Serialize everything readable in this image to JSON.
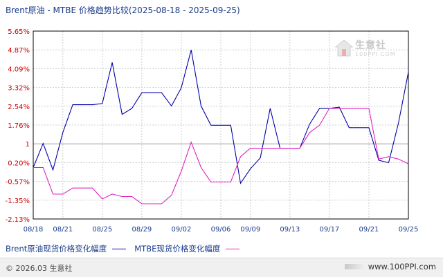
{
  "chart_data": {
    "type": "line",
    "title": "Brent原油 - MTBE 价格趋势比较(2025-08-18 - 2025-09-25)",
    "xlabel": "",
    "ylabel": "",
    "x_tick_labels": [
      "08/18",
      "08/21",
      "08/25",
      "08/29",
      "09/02",
      "09/06",
      "09/09",
      "09/13",
      "09/17",
      "09/21",
      "09/25"
    ],
    "y_tick_labels": [
      "5.65%",
      "4.87%",
      "4.09%",
      "3.32%",
      "2.54%",
      "1.76%",
      "1",
      "0.20%",
      "-0.57%",
      "-1.35%",
      "-2.13%"
    ],
    "ylim": [
      -2.13,
      5.65
    ],
    "grid": true,
    "legend_position": "bottom-left",
    "series": [
      {
        "name": "Brent原油现货价格变化幅度",
        "color": "#0000aa",
        "x": [
          "08/18",
          "08/19",
          "08/20",
          "08/21",
          "08/22",
          "08/23",
          "08/24",
          "08/25",
          "08/26",
          "08/27",
          "08/28",
          "08/29",
          "08/30",
          "08/31",
          "09/01",
          "09/02",
          "09/03",
          "09/04",
          "09/05",
          "09/06",
          "09/07",
          "09/08",
          "09/09",
          "09/10",
          "09/11",
          "09/12",
          "09/13",
          "09/14",
          "09/15",
          "09/16",
          "09/17",
          "09/18",
          "09/19",
          "09/20",
          "09/21",
          "09/22",
          "09/23",
          "09/24",
          "09/25"
        ],
        "values": [
          0.0,
          1.0,
          -0.1,
          1.45,
          2.6,
          2.6,
          2.6,
          2.65,
          4.35,
          2.2,
          2.45,
          3.1,
          3.1,
          3.1,
          2.55,
          3.3,
          4.87,
          2.55,
          1.75,
          1.75,
          1.75,
          -0.65,
          -0.05,
          0.4,
          2.45,
          0.8,
          0.8,
          0.8,
          1.8,
          2.45,
          2.45,
          2.5,
          1.65,
          1.65,
          1.65,
          0.3,
          0.2,
          1.85,
          3.95
        ]
      },
      {
        "name": "MTBE现货价格变化幅度",
        "color": "#e020c0",
        "x": [
          "08/18",
          "08/19",
          "08/20",
          "08/21",
          "08/22",
          "08/23",
          "08/24",
          "08/25",
          "08/26",
          "08/27",
          "08/28",
          "08/29",
          "08/30",
          "08/31",
          "09/01",
          "09/02",
          "09/03",
          "09/04",
          "09/05",
          "09/06",
          "09/07",
          "09/08",
          "09/09",
          "09/10",
          "09/11",
          "09/12",
          "09/13",
          "09/14",
          "09/15",
          "09/16",
          "09/17",
          "09/18",
          "09/19",
          "09/20",
          "09/21",
          "09/22",
          "09/23",
          "09/24",
          "09/25"
        ],
        "values": [
          0.0,
          0.0,
          -1.1,
          -1.1,
          -0.85,
          -0.85,
          -0.85,
          -1.3,
          -1.1,
          -1.2,
          -1.2,
          -1.5,
          -1.5,
          -1.5,
          -1.15,
          -0.15,
          1.05,
          0.0,
          -0.6,
          -0.6,
          -0.6,
          0.45,
          0.8,
          0.8,
          0.8,
          0.8,
          0.8,
          0.8,
          1.45,
          1.75,
          2.45,
          2.45,
          2.45,
          2.45,
          2.45,
          0.35,
          0.45,
          0.35,
          0.15
        ]
      }
    ]
  },
  "watermark": {
    "cn": "生意社",
    "en": "100PPI.COM"
  },
  "footer": {
    "copyright": "© 2026.03 生意社",
    "site": "www.100PPI.com"
  }
}
